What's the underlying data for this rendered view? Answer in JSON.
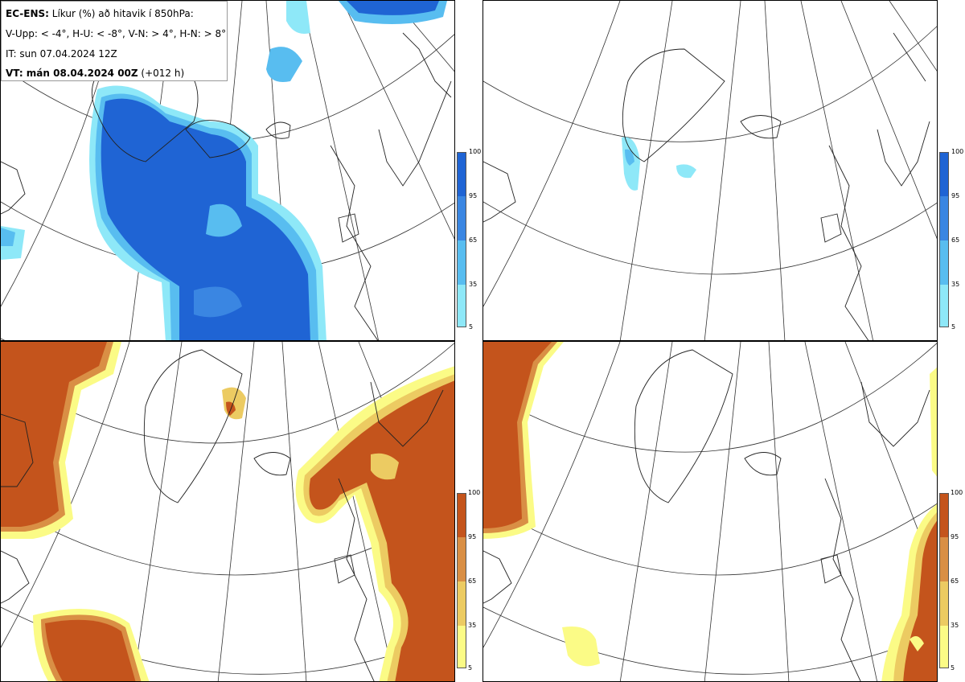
{
  "header": {
    "model": "EC-ENS:",
    "title": " Líkur (%) að hitavik í 850hPa:",
    "legend_text": "V-Upp: < -4°, H-U: < -8°, V-N: > 4°, H-N: > 8°",
    "init_time": "IT: sun 07.04.2024 12Z",
    "valid_label": "VT: mán 08.04.2024 00Z",
    "valid_offset": " (+012 h)"
  },
  "colorbar": {
    "tick_labels": [
      "100",
      "95",
      "65",
      "35",
      "5"
    ],
    "cold_colors": [
      "#1f64d4",
      "#3a86e2",
      "#58bdf0",
      "#8ee8f8"
    ],
    "warm_colors": [
      "#c4541c",
      "#d98f45",
      "#eccb62",
      "#fbfb86"
    ]
  },
  "panels": [
    {
      "id": "V-Upp",
      "scheme": "cold"
    },
    {
      "id": "H-U",
      "scheme": "cold"
    },
    {
      "id": "V-N",
      "scheme": "warm"
    },
    {
      "id": "H-N",
      "scheme": "warm"
    }
  ]
}
